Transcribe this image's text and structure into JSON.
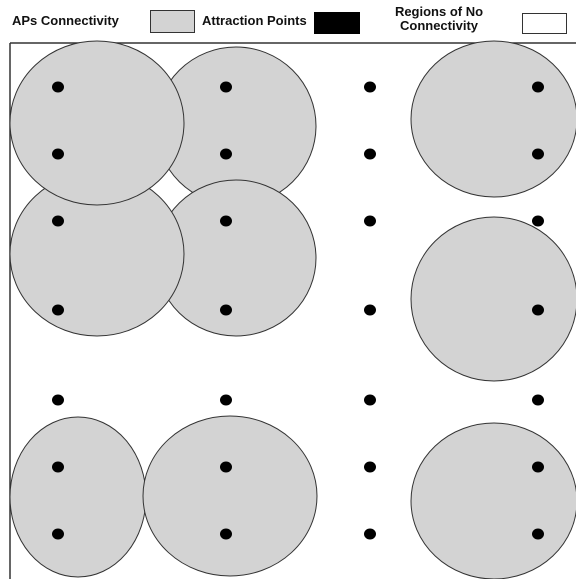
{
  "legend": {
    "ap_label": "APs Connectivity",
    "attraction_label": "Attraction Points",
    "noconn_label_line1": "Regions of No",
    "noconn_label_line2": "Connectivity"
  },
  "colors": {
    "ap_fill": "#d3d3d3",
    "ap_stroke": "#333333",
    "attraction": "#000000",
    "no_connectivity": "#ffffff",
    "border": "#333333"
  }
}
